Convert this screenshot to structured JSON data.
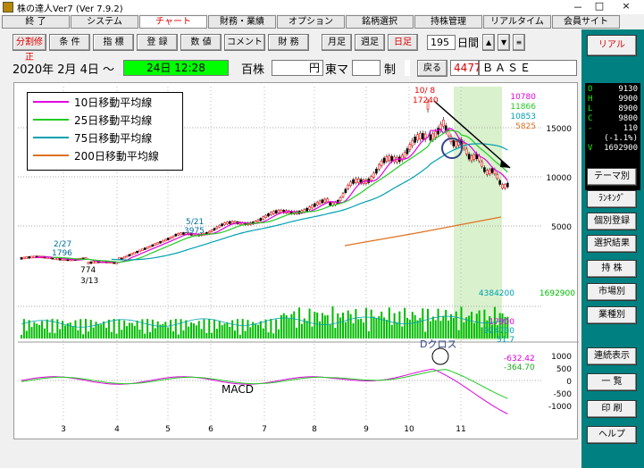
{
  "window": {
    "title": "株の達人Ver7 (Ver 7.9.2)",
    "min": "－",
    "max": "□",
    "close": "×"
  },
  "menu": [
    "終 了",
    "システム",
    "チャート",
    "財務・業績",
    "オプション",
    "銘柄選択",
    "持株管理",
    "リアルタイム",
    "会員サイト"
  ],
  "menu_active_index": 2,
  "toolbar": {
    "buttons": [
      "分割修正",
      "条 件",
      "指 標",
      "登 録",
      "数 値",
      "コメント",
      "財 務",
      "月足",
      "週足",
      "日足"
    ],
    "period_value": "195",
    "period_unit": "日間",
    "realtime": "リアル"
  },
  "info": {
    "date_label": "2020年 2月 4日 ～",
    "time_box": "24日 12:28",
    "unit": "百株",
    "currency": "円",
    "market": "東マ",
    "seido": "制",
    "back": "戻る",
    "code": "4477",
    "name": "ＢＡＳＥ"
  },
  "quote": {
    "O": "9130",
    "H": "9900",
    "L": "8900",
    "C": "9800",
    "change": "110",
    "change_pct": "(-1.1%)",
    "V": "1692900"
  },
  "side_buttons": [
    "テーマ別",
    "ﾗﾝｷﾝｸﾞ",
    "個別登録",
    "選択結果",
    "持 株",
    "市場別",
    "業種別",
    "連続表示",
    "一 覧",
    "印 刷",
    "ヘルプ"
  ],
  "legend": [
    {
      "label": "10日移動平均線",
      "color": "#e000e0"
    },
    {
      "label": "25日移動平均線",
      "color": "#22cc22"
    },
    {
      "label": "75日移動平均線",
      "color": "#00a0b0"
    },
    {
      "label": "200日移動平均線",
      "color": "#e07020"
    }
  ],
  "chart_data": {
    "type": "candlestick",
    "price_axis": [
      "15000",
      "10000",
      "5000"
    ],
    "ma_values": [
      "10780",
      "11866",
      "10853",
      "5825"
    ],
    "annotations": [
      "10/ 8",
      "17240",
      "5/21",
      "3975",
      "2/27",
      "1796",
      "774",
      "3/13"
    ],
    "volume_labels": [
      "4384200",
      "1692900",
      "17900",
      "924700",
      "51.7"
    ],
    "macd_label": "MACD",
    "dcross_label": "Dクロス",
    "macd_values": [
      "-632.42",
      "-364.70"
    ],
    "macd_axis": [
      "1000",
      "500",
      "0",
      "-500",
      "-1000"
    ],
    "months": [
      "3",
      "4",
      "5",
      "6",
      "7",
      "8",
      "9",
      "10",
      "11"
    ]
  }
}
